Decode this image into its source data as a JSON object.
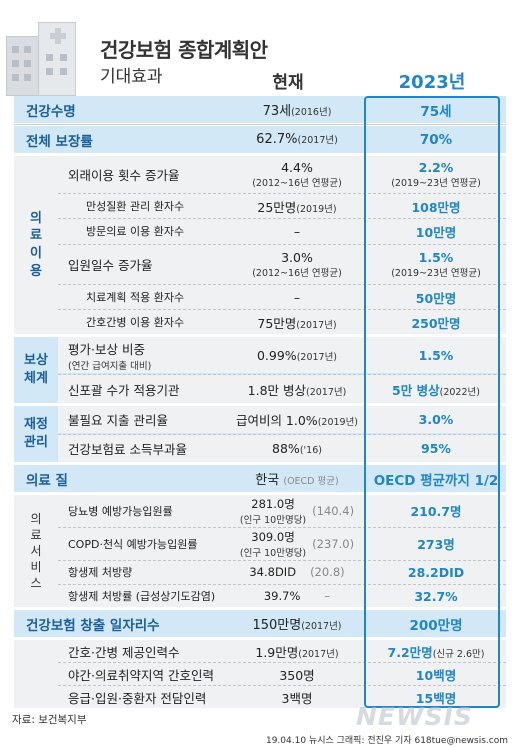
{
  "header": {
    "title": "건강보험 종합계획안",
    "subtitle": "기대효과",
    "col_now": "현재",
    "col_2023": "2023년"
  },
  "rows_top": [
    {
      "label": "건강수명",
      "now": "73세",
      "now_note": "(2016년)",
      "new": "75세"
    },
    {
      "label": "전체 보장률",
      "now": "62.7%",
      "now_note": "(2017년)",
      "new": "70%"
    }
  ],
  "medical_use": {
    "section_label": [
      "의",
      "료",
      "이",
      "용"
    ],
    "rows": [
      {
        "label": "외래이용 횟수 증가율",
        "now": "4.4%",
        "now_note": "(2012~16년 연평균)",
        "new": "2.2%",
        "new_note": "(2019~23년 연평균)"
      },
      {
        "label": "만성질환 관리 환자수",
        "now": "25만명",
        "now_note": "(2019년)",
        "new": "108만명"
      },
      {
        "label": "방문의료 이용 환자수",
        "now": "–",
        "new": "10만명"
      },
      {
        "label": "입원일수 증가율",
        "now": "3.0%",
        "now_note": "(2012~16년 연평균)",
        "new": "1.5%",
        "new_note": "(2019~23년 연평균)"
      },
      {
        "label": "치료계획 적용 환자수",
        "now": "–",
        "new": "50만명"
      },
      {
        "label": "간호간병 이용 환자수",
        "now": "75만명",
        "now_note": "(2017년)",
        "new": "250만명"
      }
    ]
  },
  "compensation": {
    "section_label": [
      "보상",
      "체계"
    ],
    "rows": [
      {
        "label": "평가·보상 비중",
        "label_note": "(연간 급여지출 대비)",
        "now": "0.99%",
        "now_note": "(2017년)",
        "new": "1.5%"
      },
      {
        "label": "신포괄 수가 적용기관",
        "now": "1.8만 병상",
        "now_note": "(2017년)",
        "new": "5만 병상",
        "new_note": "(2022년)"
      }
    ]
  },
  "finance": {
    "section_label": [
      "재정",
      "관리"
    ],
    "rows": [
      {
        "label": "불필요 지출 관리율",
        "now": "급여비의 1.0%",
        "now_note": "(2019년)",
        "new": "3.0%"
      },
      {
        "label": "건강보험료 소득부과율",
        "now": "88%",
        "now_note": "('16)",
        "new": "95%"
      }
    ]
  },
  "quality": {
    "label": "의료 질",
    "now": "한국",
    "now_note": "(OECD 평균)",
    "new": "OECD 평균까지 1/2"
  },
  "medical_service": {
    "section_label": [
      "의",
      "료",
      "서",
      "비",
      "스"
    ],
    "rows": [
      {
        "label": "당뇨병 예방가능입원률",
        "now": "281.0명",
        "now_sub": "(인구 10만명당)",
        "now_avg": "(140.4)",
        "new": "210.7명"
      },
      {
        "label": "COPD·천식 예방가능입원률",
        "now": "309.0명",
        "now_sub": "(인구 10만명당)",
        "now_avg": "(237.0)",
        "new": "273명"
      },
      {
        "label": "항생제 처방량",
        "now": "34.8DID",
        "now_avg": "(20.8)",
        "new": "28.2DID"
      },
      {
        "label": "항생제 처방률 (급성상기도감염)",
        "now": "39.7%",
        "now_avg": "–",
        "new": "32.7%"
      }
    ]
  },
  "jobs": {
    "label": "건강보험 창출 일자리수",
    "now": "150만명",
    "now_note": "(2017년)",
    "new": "200만명",
    "rows": [
      {
        "label": "간호·간병 제공인력수",
        "now": "1.9만명",
        "now_note": "(2017년)",
        "new": "7.2만명",
        "new_note": "(신규 2.6만)"
      },
      {
        "label": "야간·의료취약지역 간호인력",
        "now": "350명",
        "new": "10백명"
      },
      {
        "label": "응급·입원·중환자 전담인력",
        "now": "3백명",
        "new": "15백명"
      }
    ]
  },
  "footer": {
    "source": "자료: 보건복지부",
    "credit": "19.04.10  뉴시스 그래픽: 전진우 기자 618tue@newsis.com",
    "watermark": "NEWSIS"
  }
}
